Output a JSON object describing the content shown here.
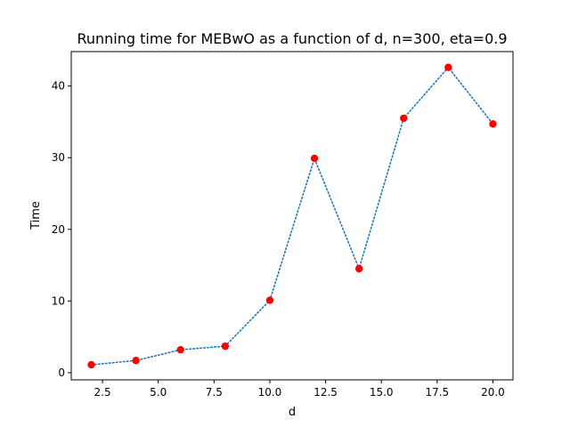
{
  "chart_data": {
    "type": "line",
    "title": "Running time for MEBwO as a function of d, n=300, eta=0.9",
    "xlabel": "d",
    "ylabel": "Time",
    "xlim": [
      1.1,
      20.9
    ],
    "ylim": [
      -1.0,
      44.8
    ],
    "xticks": [
      2.5,
      5.0,
      7.5,
      10.0,
      12.5,
      15.0,
      17.5,
      20.0
    ],
    "xtick_labels": [
      "2.5",
      "5.0",
      "7.5",
      "10.0",
      "12.5",
      "15.0",
      "17.5",
      "20.0"
    ],
    "yticks": [
      0,
      10,
      20,
      30,
      40
    ],
    "ytick_labels": [
      "0",
      "10",
      "20",
      "30",
      "40"
    ],
    "grid": false,
    "series": [
      {
        "x": [
          2,
          4,
          6,
          8,
          10,
          12,
          14,
          16,
          18,
          20
        ],
        "y": [
          1.1,
          1.7,
          3.2,
          3.7,
          10.1,
          29.9,
          14.5,
          35.5,
          42.6,
          34.7
        ],
        "line_style": "dotted",
        "line_color": "#1f77b4",
        "marker_color": "#ff0000"
      }
    ]
  }
}
